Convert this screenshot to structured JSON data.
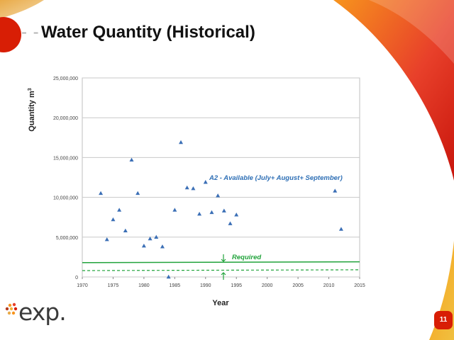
{
  "slide": {
    "title": "Water Quantity (Historical)",
    "title_dash": "- -",
    "logo_text": "exp.",
    "page_number": "11"
  },
  "colors": {
    "accent_red": "#d81e05",
    "accent_orange": "#f7941d",
    "marker_blue": "#3b6fb6",
    "annotation_blue": "#2e6fb5",
    "required_green": "#21a33b"
  },
  "chart_data": {
    "type": "scatter",
    "xlabel": "Year",
    "ylabel": "Quantity m",
    "ylabel_superscript": "3",
    "xlim": [
      1970,
      2015
    ],
    "ylim": [
      0,
      25000000
    ],
    "x_ticks": [
      1970,
      1975,
      1980,
      1985,
      1990,
      1995,
      2000,
      2005,
      2010,
      2015
    ],
    "y_ticks": [
      0,
      5000000,
      10000000,
      15000000,
      20000000,
      25000000
    ],
    "y_tick_labels": [
      "0",
      "5,000,000",
      "10,000,000",
      "15,000,000",
      "20,000,000",
      "25,000,000"
    ],
    "grid": "horizontal",
    "series": [
      {
        "marker": "triangle",
        "points": [
          [
            1973,
            10500000
          ],
          [
            1974,
            4700000
          ],
          [
            1975,
            7200000
          ],
          [
            1976,
            8400000
          ],
          [
            1977,
            5800000
          ],
          [
            1978,
            14700000
          ],
          [
            1979,
            10500000
          ],
          [
            1980,
            3900000
          ],
          [
            1981,
            4800000
          ],
          [
            1982,
            5000000
          ],
          [
            1983,
            3800000
          ],
          [
            1984,
            0
          ],
          [
            1985,
            8400000
          ],
          [
            1986,
            16900000
          ],
          [
            1987,
            11200000
          ],
          [
            1988,
            11100000
          ],
          [
            1989,
            7900000
          ],
          [
            1990,
            11900000
          ],
          [
            1991,
            8100000
          ],
          [
            1992,
            10200000
          ],
          [
            1993,
            8300000
          ],
          [
            1994,
            6700000
          ],
          [
            1995,
            7800000
          ],
          [
            2011,
            10800000
          ],
          [
            2012,
            6000000
          ]
        ]
      }
    ],
    "reference_lines": [
      {
        "style": "solid",
        "y_start": 1800000,
        "y_end": 1900000
      },
      {
        "style": "dashed",
        "y_start": 800000,
        "y_end": 900000
      }
    ],
    "annotations": {
      "available": "A2 - Available (July+ August+ September)",
      "required": "Required"
    }
  }
}
